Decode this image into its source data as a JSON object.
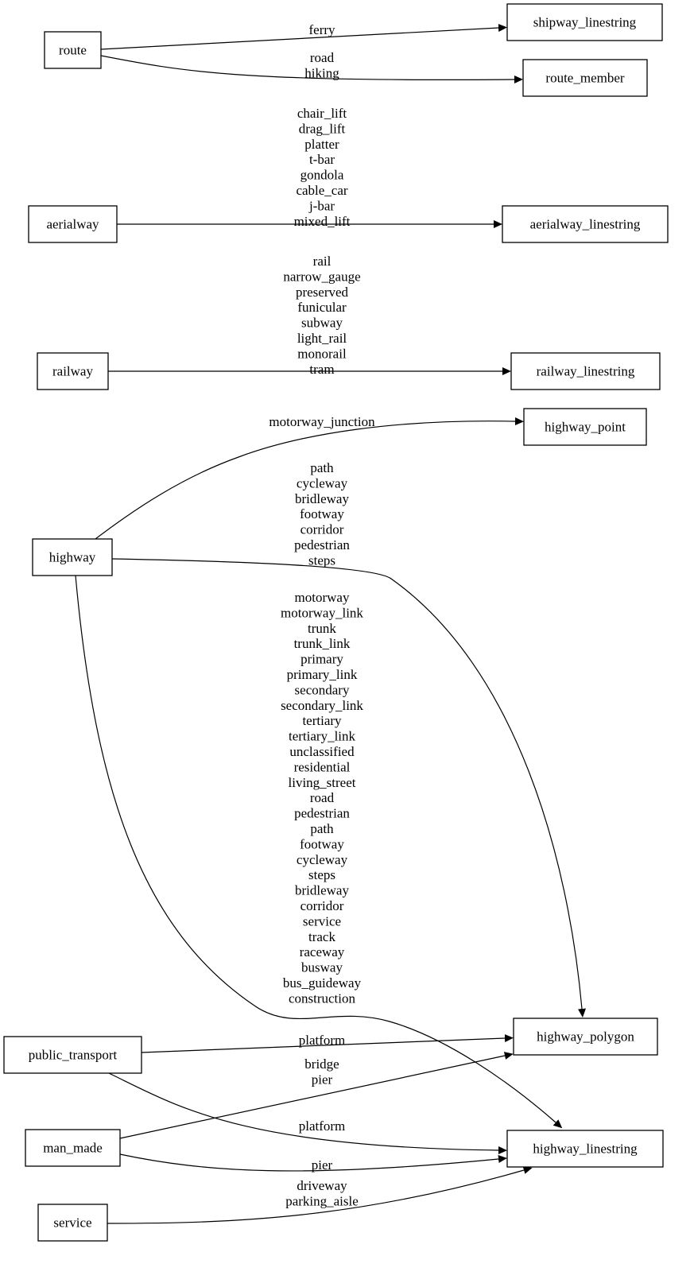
{
  "nodes": {
    "route": "route",
    "shipway_linestring": "shipway_linestring",
    "route_member": "route_member",
    "aerialway": "aerialway",
    "aerialway_linestring": "aerialway_linestring",
    "railway": "railway",
    "railway_linestring": "railway_linestring",
    "highway_point": "highway_point",
    "highway": "highway",
    "highway_polygon": "highway_polygon",
    "public_transport": "public_transport",
    "highway_linestring": "highway_linestring",
    "man_made": "man_made",
    "service": "service"
  },
  "edges": [
    {
      "from": "route",
      "to": "shipway_linestring",
      "labels": [
        "ferry"
      ]
    },
    {
      "from": "route",
      "to": "route_member",
      "labels": [
        "road",
        "hiking"
      ]
    },
    {
      "from": "aerialway",
      "to": "aerialway_linestring",
      "labels": [
        "chair_lift",
        "drag_lift",
        "platter",
        "t-bar",
        "gondola",
        "cable_car",
        "j-bar",
        "mixed_lift"
      ]
    },
    {
      "from": "railway",
      "to": "railway_linestring",
      "labels": [
        "rail",
        "narrow_gauge",
        "preserved",
        "funicular",
        "subway",
        "light_rail",
        "monorail",
        "tram"
      ]
    },
    {
      "from": "highway",
      "to": "highway_point",
      "labels": [
        "motorway_junction"
      ]
    },
    {
      "from": "highway",
      "to": "highway_polygon",
      "labels": [
        "path",
        "cycleway",
        "bridleway",
        "footway",
        "corridor",
        "pedestrian",
        "steps"
      ]
    },
    {
      "from": "highway",
      "to": "highway_linestring",
      "labels": [
        "motorway",
        "motorway_link",
        "trunk",
        "trunk_link",
        "primary",
        "primary_link",
        "secondary",
        "secondary_link",
        "tertiary",
        "tertiary_link",
        "unclassified",
        "residential",
        "living_street",
        "road",
        "pedestrian",
        "path",
        "footway",
        "cycleway",
        "steps",
        "bridleway",
        "corridor",
        "service",
        "track",
        "raceway",
        "busway",
        "bus_guideway",
        "construction"
      ]
    },
    {
      "from": "public_transport",
      "to": "highway_polygon",
      "labels": [
        "platform"
      ]
    },
    {
      "from": "man_made",
      "to": "highway_polygon",
      "labels": [
        "bridge",
        "pier"
      ]
    },
    {
      "from": "public_transport",
      "to": "highway_linestring",
      "labels": [
        "platform"
      ]
    },
    {
      "from": "man_made",
      "to": "highway_linestring",
      "labels": [
        "pier"
      ]
    },
    {
      "from": "service",
      "to": "highway_linestring",
      "labels": [
        "driveway",
        "parking_aisle"
      ]
    }
  ]
}
